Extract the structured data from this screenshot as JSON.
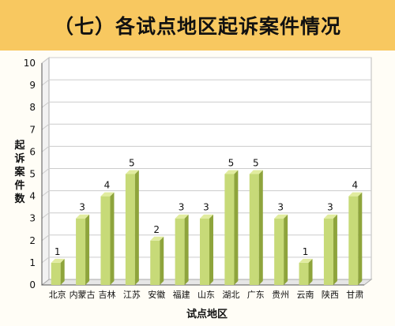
{
  "chart_data": {
    "type": "bar",
    "title": "（七）各试点地区起诉案件情况",
    "xlabel": "试点地区",
    "ylabel": "起诉案件数",
    "categories": [
      "北京",
      "内蒙古",
      "吉林",
      "江苏",
      "安徽",
      "福建",
      "山东",
      "湖北",
      "广东",
      "贵州",
      "云南",
      "陕西",
      "甘肃"
    ],
    "values": [
      1,
      3,
      4,
      5,
      2,
      3,
      3,
      5,
      5,
      3,
      1,
      3,
      4
    ],
    "ylim": [
      0,
      10
    ],
    "yticks": [
      0,
      1,
      2,
      3,
      4,
      5,
      6,
      7,
      8,
      9,
      10
    ],
    "grid": true,
    "data_labels": true,
    "legend": "none",
    "colors": {
      "bar_front": "#c7da78",
      "bar_side": "#8ea43c",
      "bar_top": "#e1ec9f",
      "title_bar": "#f8c860",
      "grid": "#cccccc"
    }
  }
}
